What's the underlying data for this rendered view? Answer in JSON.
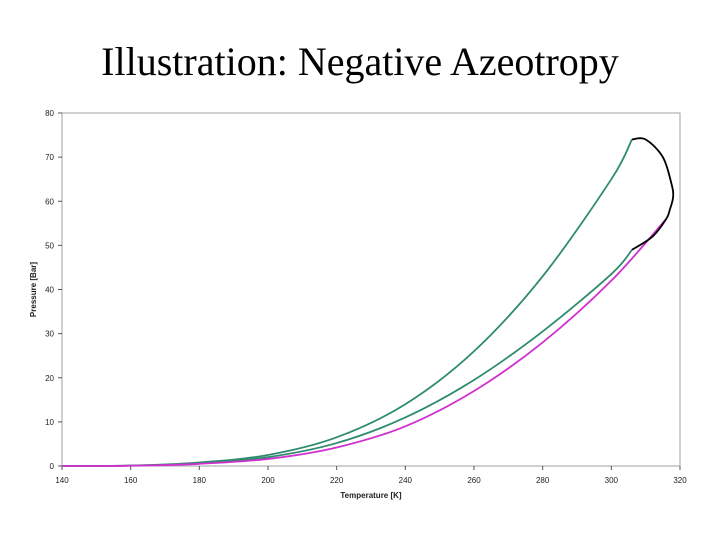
{
  "slide": {
    "title": "Illustration: Negative Azeotropy"
  },
  "chart_data": {
    "type": "line",
    "title": "",
    "xlabel": "Temperature [K]",
    "ylabel": "Pressure [Bar]",
    "xlim": [
      140,
      320
    ],
    "ylim": [
      0,
      80
    ],
    "xticks": [
      140,
      160,
      180,
      200,
      220,
      240,
      260,
      280,
      300,
      320
    ],
    "yticks": [
      0,
      10,
      20,
      30,
      40,
      50,
      60,
      70,
      80
    ],
    "grid": false,
    "legend": "none",
    "plot_background": "#ffffff",
    "plot_border_color": "#a0a0a0",
    "series": [
      {
        "color": "#2e8b6e",
        "x": [
          140,
          160,
          180,
          200,
          220,
          240,
          260,
          280,
          300,
          306
        ],
        "y": [
          0,
          0.1,
          0.8,
          2.5,
          6.5,
          14,
          26,
          43,
          65,
          74
        ]
      },
      {
        "color": "#2e8b6e",
        "x": [
          140,
          160,
          180,
          200,
          220,
          240,
          260,
          280,
          300,
          306
        ],
        "y": [
          0,
          0.1,
          0.6,
          2,
          5.2,
          11,
          19.5,
          30.5,
          43.5,
          49
        ]
      },
      {
        "color": "#d030d0",
        "x": [
          140,
          160,
          180,
          200,
          220,
          240,
          260,
          280,
          300,
          316
        ],
        "y": [
          0,
          0.05,
          0.5,
          1.6,
          4.2,
          9,
          17,
          28,
          42,
          56
        ]
      },
      {
        "color": "#000000",
        "x": [
          306,
          310,
          315,
          317.5,
          318,
          317,
          316,
          312,
          306
        ],
        "y": [
          74,
          74,
          70,
          64,
          61,
          58,
          56,
          52,
          49
        ]
      }
    ]
  }
}
